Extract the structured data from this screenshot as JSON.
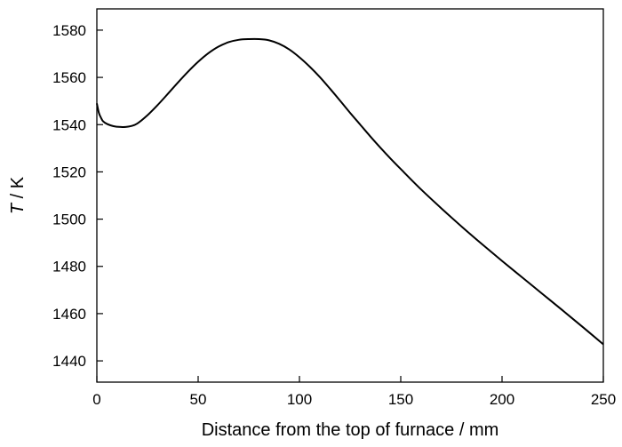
{
  "chart_data": {
    "type": "line",
    "title": "",
    "xlabel": "Distance from the top of furnace / mm",
    "ylabel_var": "T",
    "ylabel_unit": " / K",
    "xlim": [
      0,
      250
    ],
    "ylim": [
      1431,
      1589
    ],
    "xticks": [
      0,
      50,
      100,
      150,
      200,
      250
    ],
    "yticks": [
      1440,
      1460,
      1480,
      1500,
      1520,
      1540,
      1560,
      1580
    ],
    "grid": false,
    "legend": "none",
    "line_color": "#000000",
    "series": [
      {
        "x": [
          0,
          1,
          2,
          3,
          5,
          8,
          10,
          12,
          14,
          17,
          20,
          25,
          30,
          35,
          40,
          45,
          50,
          55,
          60,
          65,
          70,
          75,
          80,
          85,
          90,
          95,
          100,
          105,
          110,
          115,
          120,
          125,
          130,
          135,
          140,
          145,
          150,
          160,
          170,
          180,
          190,
          200,
          210,
          220,
          230,
          240,
          250
        ],
        "values": [
          1549,
          1545,
          1543,
          1541.5,
          1540.3,
          1539.4,
          1539.1,
          1539,
          1539,
          1539.4,
          1540.5,
          1544,
          1548.3,
          1553,
          1557.8,
          1562.4,
          1566.6,
          1570.2,
          1573,
          1574.9,
          1575.9,
          1576.2,
          1576.2,
          1575.7,
          1574.2,
          1571.8,
          1568.5,
          1564.6,
          1560.2,
          1555.3,
          1550.2,
          1545,
          1540,
          1535,
          1530.2,
          1525.6,
          1521.2,
          1512.6,
          1504.6,
          1496.9,
          1489.5,
          1482.3,
          1475.3,
          1468.3,
          1461.3,
          1454.2,
          1447
        ]
      }
    ]
  }
}
